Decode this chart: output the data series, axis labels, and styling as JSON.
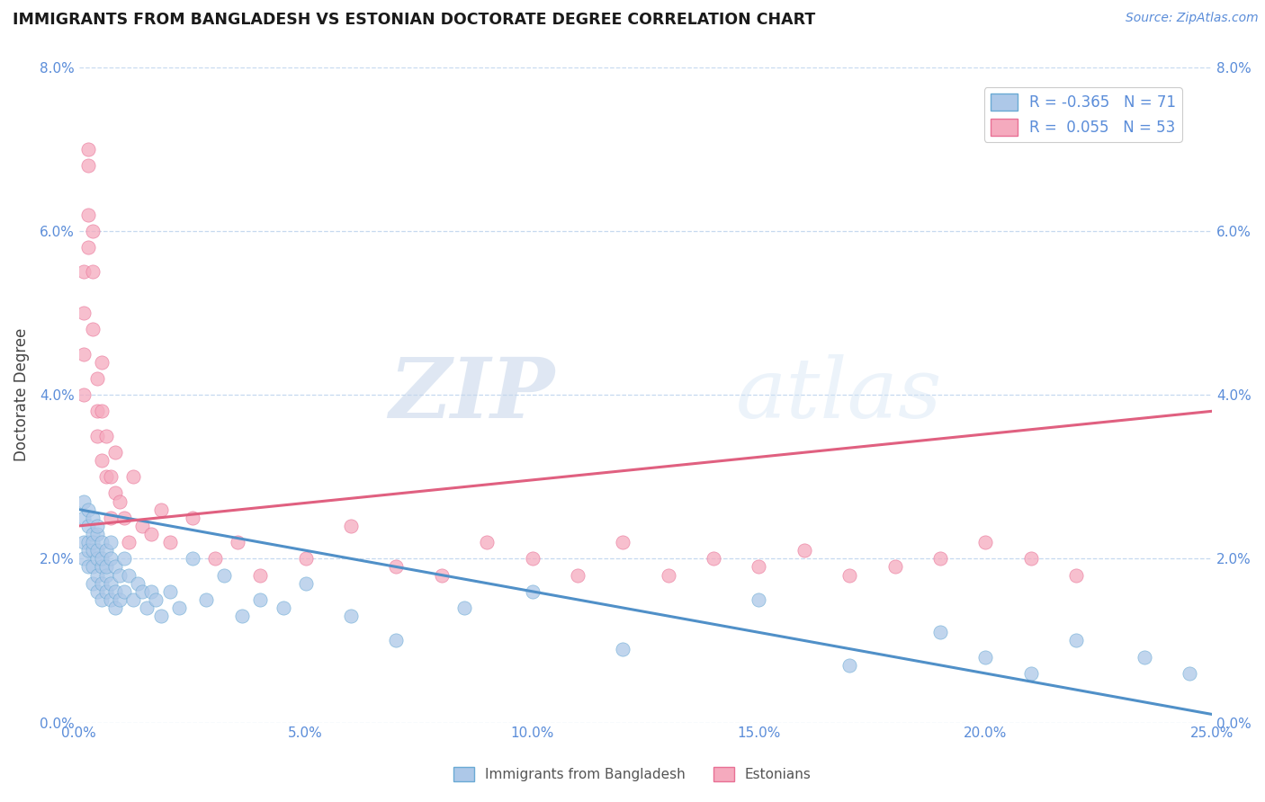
{
  "title": "IMMIGRANTS FROM BANGLADESH VS ESTONIAN DOCTORATE DEGREE CORRELATION CHART",
  "source": "Source: ZipAtlas.com",
  "ylabel": "Doctorate Degree",
  "xlim": [
    0.0,
    0.25
  ],
  "ylim": [
    0.0,
    0.08
  ],
  "xticks": [
    0.0,
    0.05,
    0.1,
    0.15,
    0.2,
    0.25
  ],
  "yticks": [
    0.0,
    0.02,
    0.04,
    0.06,
    0.08
  ],
  "xtick_labels": [
    "0.0%",
    "5.0%",
    "10.0%",
    "15.0%",
    "20.0%",
    "25.0%"
  ],
  "ytick_labels": [
    "0.0%",
    "2.0%",
    "4.0%",
    "6.0%",
    "8.0%"
  ],
  "blue_R": -0.365,
  "blue_N": 71,
  "pink_R": 0.055,
  "pink_N": 53,
  "blue_color": "#adc8e8",
  "pink_color": "#f5aabe",
  "blue_edge_color": "#6aaad4",
  "pink_edge_color": "#e87095",
  "blue_line_color": "#5090c8",
  "pink_line_color": "#e06080",
  "legend_label_blue": "Immigrants from Bangladesh",
  "legend_label_pink": "Estonians",
  "watermark_zip": "ZIP",
  "watermark_atlas": "atlas",
  "blue_line_start_y": 0.026,
  "blue_line_end_y": 0.001,
  "pink_line_start_y": 0.024,
  "pink_line_end_y": 0.038,
  "blue_scatter_x": [
    0.001,
    0.001,
    0.001,
    0.001,
    0.002,
    0.002,
    0.002,
    0.002,
    0.002,
    0.003,
    0.003,
    0.003,
    0.003,
    0.003,
    0.003,
    0.004,
    0.004,
    0.004,
    0.004,
    0.004,
    0.004,
    0.005,
    0.005,
    0.005,
    0.005,
    0.005,
    0.006,
    0.006,
    0.006,
    0.006,
    0.007,
    0.007,
    0.007,
    0.007,
    0.008,
    0.008,
    0.008,
    0.009,
    0.009,
    0.01,
    0.01,
    0.011,
    0.012,
    0.013,
    0.014,
    0.015,
    0.016,
    0.017,
    0.018,
    0.02,
    0.022,
    0.025,
    0.028,
    0.032,
    0.036,
    0.04,
    0.045,
    0.05,
    0.06,
    0.07,
    0.085,
    0.1,
    0.12,
    0.15,
    0.17,
    0.19,
    0.2,
    0.21,
    0.22,
    0.235,
    0.245
  ],
  "blue_scatter_y": [
    0.025,
    0.027,
    0.022,
    0.02,
    0.024,
    0.022,
    0.026,
    0.021,
    0.019,
    0.023,
    0.021,
    0.025,
    0.019,
    0.017,
    0.022,
    0.02,
    0.023,
    0.021,
    0.018,
    0.016,
    0.024,
    0.019,
    0.022,
    0.02,
    0.017,
    0.015,
    0.018,
    0.021,
    0.016,
    0.019,
    0.017,
    0.02,
    0.015,
    0.022,
    0.016,
    0.019,
    0.014,
    0.015,
    0.018,
    0.016,
    0.02,
    0.018,
    0.015,
    0.017,
    0.016,
    0.014,
    0.016,
    0.015,
    0.013,
    0.016,
    0.014,
    0.02,
    0.015,
    0.018,
    0.013,
    0.015,
    0.014,
    0.017,
    0.013,
    0.01,
    0.014,
    0.016,
    0.009,
    0.015,
    0.007,
    0.011,
    0.008,
    0.006,
    0.01,
    0.008,
    0.006
  ],
  "pink_scatter_x": [
    0.001,
    0.001,
    0.001,
    0.001,
    0.002,
    0.002,
    0.002,
    0.002,
    0.003,
    0.003,
    0.003,
    0.004,
    0.004,
    0.004,
    0.005,
    0.005,
    0.005,
    0.006,
    0.006,
    0.007,
    0.007,
    0.008,
    0.008,
    0.009,
    0.01,
    0.011,
    0.012,
    0.014,
    0.016,
    0.018,
    0.02,
    0.025,
    0.03,
    0.035,
    0.04,
    0.05,
    0.06,
    0.07,
    0.08,
    0.09,
    0.1,
    0.11,
    0.12,
    0.13,
    0.14,
    0.15,
    0.16,
    0.17,
    0.18,
    0.19,
    0.2,
    0.21,
    0.22
  ],
  "pink_scatter_y": [
    0.05,
    0.055,
    0.045,
    0.04,
    0.062,
    0.068,
    0.058,
    0.07,
    0.055,
    0.048,
    0.06,
    0.038,
    0.042,
    0.035,
    0.038,
    0.032,
    0.044,
    0.03,
    0.035,
    0.03,
    0.025,
    0.033,
    0.028,
    0.027,
    0.025,
    0.022,
    0.03,
    0.024,
    0.023,
    0.026,
    0.022,
    0.025,
    0.02,
    0.022,
    0.018,
    0.02,
    0.024,
    0.019,
    0.018,
    0.022,
    0.02,
    0.018,
    0.022,
    0.018,
    0.02,
    0.019,
    0.021,
    0.018,
    0.019,
    0.02,
    0.022,
    0.02,
    0.018
  ]
}
